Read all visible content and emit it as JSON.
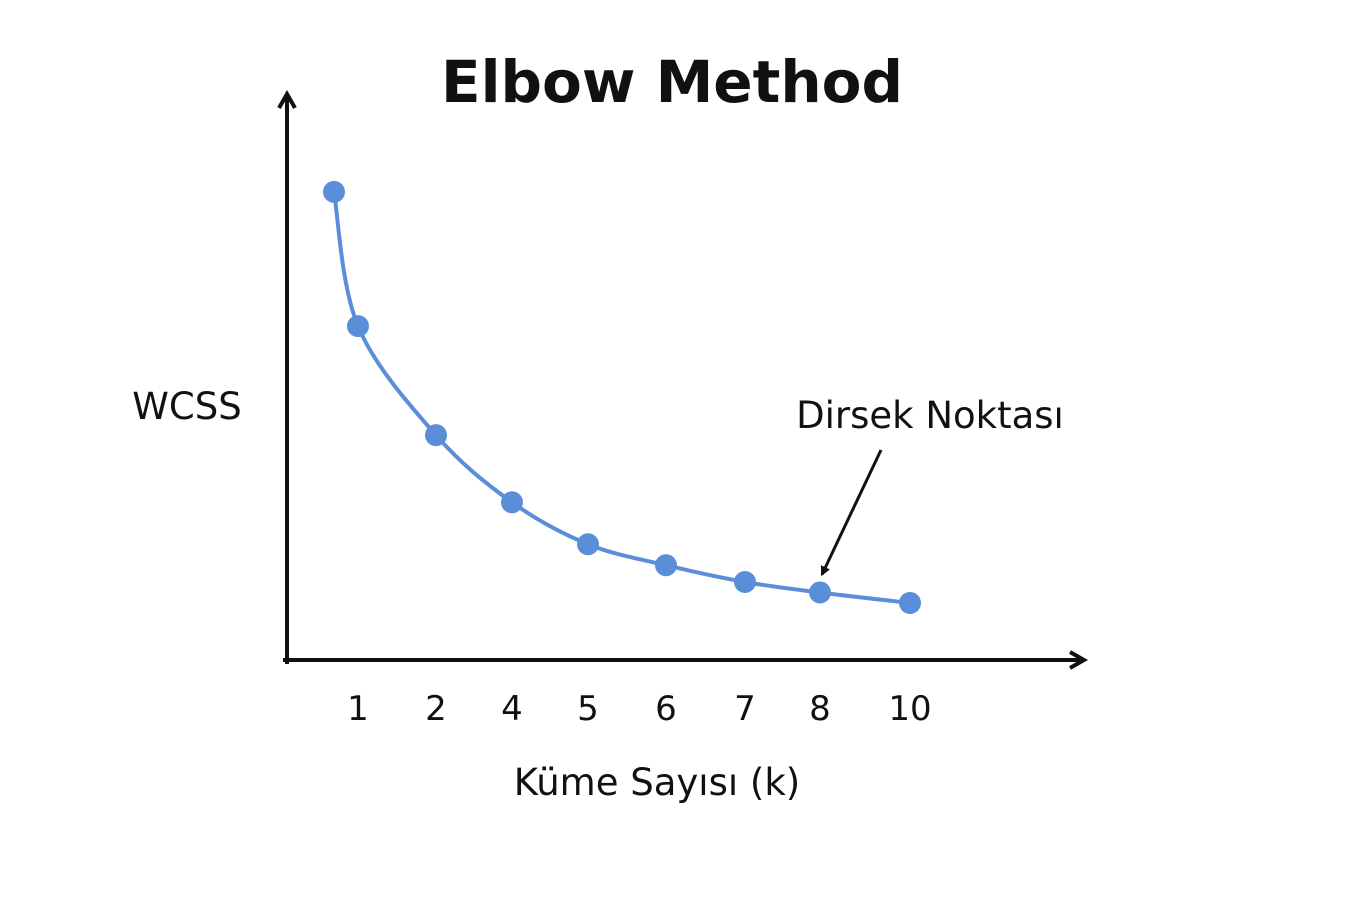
{
  "chart_data": {
    "type": "line",
    "title": "Elbow Method",
    "xlabel": "Küme Sayısı (k)",
    "ylabel": "WCSS",
    "categories": [
      "",
      "1",
      "2",
      "4",
      "5",
      "6",
      "7",
      "8",
      "10"
    ],
    "series": [
      {
        "values": [
          100,
          68,
          42,
          26,
          16,
          11,
          7,
          4.5,
          2
        ]
      }
    ],
    "ylim": [
      -11.6,
      120
    ],
    "grid": false,
    "annotations": [
      {
        "text": "Dirsek Noktası",
        "target_category": "8",
        "arrow": true
      }
    ],
    "colors": {
      "line": "#5b8ed8",
      "marker": "#5b8ed8",
      "axis": "#111111"
    }
  }
}
